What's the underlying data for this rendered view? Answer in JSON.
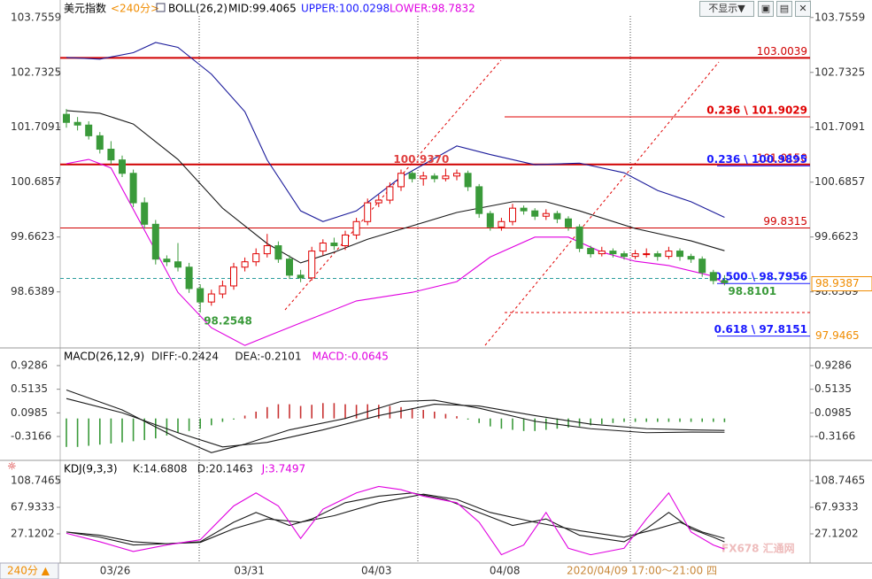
{
  "header": {
    "symbol": "美元指数",
    "period": "<240分>",
    "indicator": "BOLL(26,2)",
    "mid": "MID:99.4065",
    "upper": "UPPER:100.0298",
    "lower": "LOWER:98.7832",
    "hide": "不显示▼"
  },
  "chart_data": [
    {
      "type": "candlestick",
      "ylim": [
        97.61,
        104.0
      ],
      "yticks": [
        103.7559,
        102.7325,
        101.7091,
        100.6857,
        99.6623,
        98.6389
      ],
      "xticks": [
        {
          "value": 4.37,
          "label": "03/26"
        },
        {
          "value": 16.4,
          "label": "03/31"
        },
        {
          "value": 27.8,
          "label": "04/03"
        },
        {
          "value": 39.3,
          "label": "04/08"
        }
      ],
      "up_color": "#e00000",
      "down_color": "#3a9a3a",
      "candles": [
        [
          101.95,
          102.05,
          101.7,
          101.8
        ],
        [
          101.8,
          101.9,
          101.65,
          101.75
        ],
        [
          101.75,
          101.82,
          101.48,
          101.55
        ],
        [
          101.55,
          101.62,
          101.22,
          101.3
        ],
        [
          101.3,
          101.45,
          101.02,
          101.1
        ],
        [
          101.1,
          101.18,
          100.78,
          100.85
        ],
        [
          100.85,
          100.92,
          100.22,
          100.3
        ],
        [
          100.3,
          100.4,
          99.82,
          99.9
        ],
        [
          99.9,
          99.98,
          99.15,
          99.25
        ],
        [
          99.25,
          99.32,
          99.12,
          99.2
        ],
        [
          99.2,
          99.55,
          99.02,
          99.1
        ],
        [
          99.1,
          99.18,
          98.62,
          98.7
        ],
        [
          98.7,
          98.78,
          98.2548,
          98.45
        ],
        [
          98.45,
          98.68,
          98.38,
          98.6
        ],
        [
          98.6,
          98.85,
          98.52,
          98.75
        ],
        [
          98.75,
          99.18,
          98.68,
          99.1
        ],
        [
          99.1,
          99.28,
          99.02,
          99.2
        ],
        [
          99.2,
          99.45,
          99.12,
          99.35
        ],
        [
          99.35,
          99.72,
          99.28,
          99.5
        ],
        [
          99.5,
          99.58,
          99.18,
          99.25
        ],
        [
          99.25,
          99.32,
          98.88,
          98.95
        ],
        [
          98.95,
          99.05,
          98.82,
          98.9
        ],
        [
          98.9,
          99.48,
          98.85,
          99.4
        ],
        [
          99.4,
          99.62,
          99.32,
          99.55
        ],
        [
          99.55,
          99.65,
          99.42,
          99.5
        ],
        [
          99.5,
          99.78,
          99.42,
          99.7
        ],
        [
          99.7,
          100.02,
          99.62,
          99.95
        ],
        [
          99.95,
          100.38,
          99.88,
          100.3
        ],
        [
          100.3,
          100.45,
          100.22,
          100.35
        ],
        [
          100.35,
          100.68,
          100.28,
          100.6
        ],
        [
          100.6,
          100.92,
          100.52,
          100.85
        ],
        [
          100.85,
          100.9,
          100.68,
          100.75
        ],
        [
          100.75,
          100.88,
          100.62,
          100.8
        ],
        [
          100.8,
          100.85,
          100.68,
          100.75
        ],
        [
          100.75,
          100.937,
          100.7,
          100.8
        ],
        [
          100.8,
          100.92,
          100.72,
          100.85
        ],
        [
          100.85,
          100.9,
          100.52,
          100.6
        ],
        [
          100.6,
          100.65,
          100.02,
          100.1
        ],
        [
          100.1,
          100.15,
          99.78,
          99.85
        ],
        [
          99.85,
          100.02,
          99.78,
          99.95
        ],
        [
          99.95,
          100.28,
          99.88,
          100.2
        ],
        [
          100.2,
          100.25,
          100.08,
          100.15
        ],
        [
          100.15,
          100.2,
          99.98,
          100.05
        ],
        [
          100.05,
          100.18,
          99.98,
          100.1
        ],
        [
          100.1,
          100.15,
          99.92,
          100.0
        ],
        [
          100.0,
          100.05,
          99.78,
          99.85
        ],
        [
          99.85,
          99.9,
          99.38,
          99.45
        ],
        [
          99.45,
          99.5,
          99.28,
          99.35
        ],
        [
          99.35,
          99.48,
          99.3,
          99.4
        ],
        [
          99.4,
          99.45,
          99.28,
          99.35
        ],
        [
          99.35,
          99.4,
          99.24,
          99.3
        ],
        [
          99.3,
          99.42,
          99.25,
          99.35
        ],
        [
          99.35,
          99.45,
          99.28,
          99.35
        ],
        [
          99.35,
          99.4,
          99.22,
          99.3
        ],
        [
          99.3,
          99.48,
          99.25,
          99.4
        ],
        [
          99.4,
          99.45,
          99.22,
          99.3
        ],
        [
          99.3,
          99.35,
          99.18,
          99.25
        ],
        [
          99.25,
          99.3,
          98.92,
          99.0
        ],
        [
          99.0,
          99.05,
          98.78,
          98.85
        ],
        [
          98.85,
          98.95,
          98.76,
          98.81
        ]
      ],
      "series": [
        {
          "color": "#1a1a1a",
          "x": [
            0,
            3,
            6,
            10,
            14,
            18,
            21,
            24,
            27,
            31,
            35,
            40,
            43,
            46,
            51,
            56,
            59
          ],
          "values": [
            102.02,
            101.97,
            101.77,
            101.11,
            100.2,
            99.54,
            99.18,
            99.38,
            99.62,
            99.87,
            100.12,
            100.32,
            100.32,
            100.15,
            99.82,
            99.59,
            99.4065
          ]
        },
        {
          "color": "#1a1a9a",
          "x": [
            0,
            3,
            6,
            8,
            10,
            13,
            16,
            18,
            21,
            23,
            26,
            30,
            35,
            38,
            42,
            46,
            50,
            53,
            56,
            59
          ],
          "values": [
            103.01,
            102.98,
            103.1,
            103.29,
            103.2,
            102.7,
            102.0,
            101.1,
            100.15,
            99.95,
            100.15,
            100.78,
            101.36,
            101.2,
            101.01,
            101.04,
            100.86,
            100.53,
            100.32,
            100.0298
          ]
        },
        {
          "color": "#e000e0",
          "x": [
            0,
            2,
            4,
            7,
            10,
            13,
            16,
            18,
            21,
            26,
            31,
            35,
            38,
            42,
            45,
            48,
            51,
            54,
            58,
            59
          ],
          "values": [
            101.03,
            101.11,
            100.95,
            99.79,
            98.63,
            97.97,
            97.64,
            97.81,
            98.06,
            98.47,
            98.63,
            98.83,
            99.29,
            99.66,
            99.66,
            99.38,
            99.21,
            99.13,
            98.93,
            98.7832
          ]
        }
      ],
      "levels": [
        {
          "value": 103.0039,
          "label": "103.0039",
          "color": "#d00000",
          "width": 2
        },
        {
          "value": 101.015,
          "label": "101.0150",
          "color": "#d00000",
          "width": 2
        },
        {
          "value": 99.8315,
          "label": "99.8315",
          "color": "#d00000",
          "width": 1
        },
        {
          "value": 98.89,
          "color": "#2a9d9d",
          "width": 1,
          "dashed": true
        }
      ],
      "fib_levels": [
        {
          "value": 101.9029,
          "label": "0.236 \\ 101.9029",
          "color": "#e00000"
        },
        {
          "value": 100.9895,
          "label": "0.236 \\ 100.9895",
          "color": "#1a1aff"
        },
        {
          "value": 98.7956,
          "label": "0.500 \\ 98.7956",
          "color": "#1a1aff"
        },
        {
          "value": 97.8151,
          "label": "0.618 \\ 97.8151",
          "color": "#1a1aff"
        },
        {
          "value": 98.2548,
          "color": "#e00000",
          "dashed": true
        }
      ],
      "annotations": [
        {
          "label": "100.9370",
          "value": 100.937,
          "index": 34,
          "color": "#e04040"
        },
        {
          "label": "98.2548",
          "value": 98.2548,
          "index": 12,
          "color": "#3a9a3a"
        },
        {
          "label": "98.8101",
          "value": 98.8101,
          "index": 59,
          "color": "#3a9a3a"
        }
      ],
      "badges": [
        {
          "label": "98.9387",
          "value": 98.9387,
          "color": "#f08c00",
          "boxed": true
        },
        {
          "label": "97.9465",
          "value": 97.9465,
          "color": "#f08c00"
        }
      ]
    },
    {
      "type": "macd",
      "title": "MACD(26,12,9)",
      "labels": [
        {
          "text": "DIFF:-0.2424",
          "color": "#1a1a1a"
        },
        {
          "text": "DEA:-0.2101",
          "color": "#1a1a1a"
        },
        {
          "text": "MACD:-0.0645",
          "color": "#e000e0"
        }
      ],
      "ylim": [
        -0.705,
        1.208
      ],
      "yticks": [
        0.9286,
        0.5135,
        0.0985,
        -0.3166
      ],
      "up_color": "#c83232",
      "down_color": "#3a9a3a",
      "histogram": [
        -0.5,
        -0.5,
        -0.48,
        -0.46,
        -0.44,
        -0.42,
        -0.4,
        -0.38,
        -0.35,
        -0.3,
        -0.25,
        -0.22,
        -0.18,
        -0.12,
        -0.06,
        -0.02,
        0.05,
        0.12,
        0.2,
        0.25,
        0.25,
        0.22,
        0.24,
        0.27,
        0.27,
        0.25,
        0.24,
        0.25,
        0.24,
        0.22,
        0.2,
        0.18,
        0.15,
        0.12,
        0.08,
        0.04,
        -0.02,
        -0.08,
        -0.14,
        -0.18,
        -0.2,
        -0.22,
        -0.22,
        -0.2,
        -0.18,
        -0.16,
        -0.14,
        -0.12,
        -0.1,
        -0.08,
        -0.06,
        -0.06,
        -0.06,
        -0.06,
        -0.06,
        -0.06,
        -0.06,
        -0.06,
        -0.06,
        -0.0645
      ],
      "series": [
        {
          "color": "#1a1a1a",
          "x": [
            0,
            5,
            10,
            13,
            16,
            20,
            25,
            30,
            33,
            37,
            42,
            47,
            52,
            56,
            59
          ],
          "values": [
            0.5,
            0.15,
            -0.35,
            -0.6,
            -0.45,
            -0.2,
            0.0,
            0.3,
            0.32,
            0.18,
            -0.05,
            -0.18,
            -0.25,
            -0.24,
            -0.2424
          ]
        },
        {
          "color": "#1a1a1a",
          "x": [
            0,
            5,
            10,
            14,
            18,
            23,
            28,
            33,
            37,
            42,
            47,
            52,
            56,
            59
          ],
          "values": [
            0.35,
            0.1,
            -0.25,
            -0.5,
            -0.42,
            -0.2,
            0.05,
            0.25,
            0.22,
            0.05,
            -0.1,
            -0.18,
            -0.2,
            -0.2101
          ]
        }
      ]
    },
    {
      "type": "line",
      "title": "KDJ(9,3,3)",
      "labels": [
        {
          "text": "K:14.6808",
          "color": "#1a1a1a"
        },
        {
          "text": "D:20.1463",
          "color": "#1a1a1a"
        },
        {
          "text": "J:3.7497",
          "color": "#e000e0"
        }
      ],
      "ylim": [
        -16.4,
        137.3
      ],
      "yticks": [
        108.7465,
        67.9333,
        27.1202
      ],
      "series": [
        {
          "color": "#1a1a1a",
          "x": [
            0,
            3,
            6,
            9,
            12,
            15,
            17,
            20,
            22,
            25,
            28,
            31,
            34,
            37,
            40,
            43,
            46,
            50,
            52,
            54,
            56,
            58,
            59
          ],
          "values": [
            30,
            22,
            10,
            12,
            15,
            45,
            60,
            40,
            50,
            75,
            85,
            90,
            80,
            60,
            40,
            50,
            25,
            15,
            35,
            60,
            35,
            22,
            14.6808
          ]
        },
        {
          "color": "#1a1a1a",
          "x": [
            0,
            3,
            6,
            9,
            12,
            15,
            18,
            21,
            24,
            28,
            32,
            35,
            38,
            42,
            46,
            50,
            53,
            55,
            57,
            59
          ],
          "values": [
            30,
            25,
            15,
            12,
            14,
            35,
            50,
            45,
            55,
            75,
            88,
            80,
            60,
            45,
            32,
            22,
            35,
            45,
            30,
            20.1463
          ]
        },
        {
          "color": "#e000e0",
          "x": [
            0,
            3,
            6,
            9,
            12,
            15,
            17,
            19,
            21,
            23,
            26,
            28,
            30,
            32,
            35,
            37,
            39,
            41,
            43,
            45,
            47,
            50,
            52,
            54,
            56,
            58,
            59
          ],
          "values": [
            28,
            15,
            0,
            10,
            18,
            70,
            90,
            70,
            20,
            65,
            90,
            100,
            95,
            85,
            75,
            45,
            -5,
            10,
            60,
            5,
            -5,
            5,
            50,
            90,
            30,
            10,
            3.7497
          ]
        }
      ]
    }
  ],
  "footer": {
    "period": "240分 ▲",
    "time": "2020/04/09 17:00～21:00 四",
    "watermark": "FX678 汇通网"
  }
}
